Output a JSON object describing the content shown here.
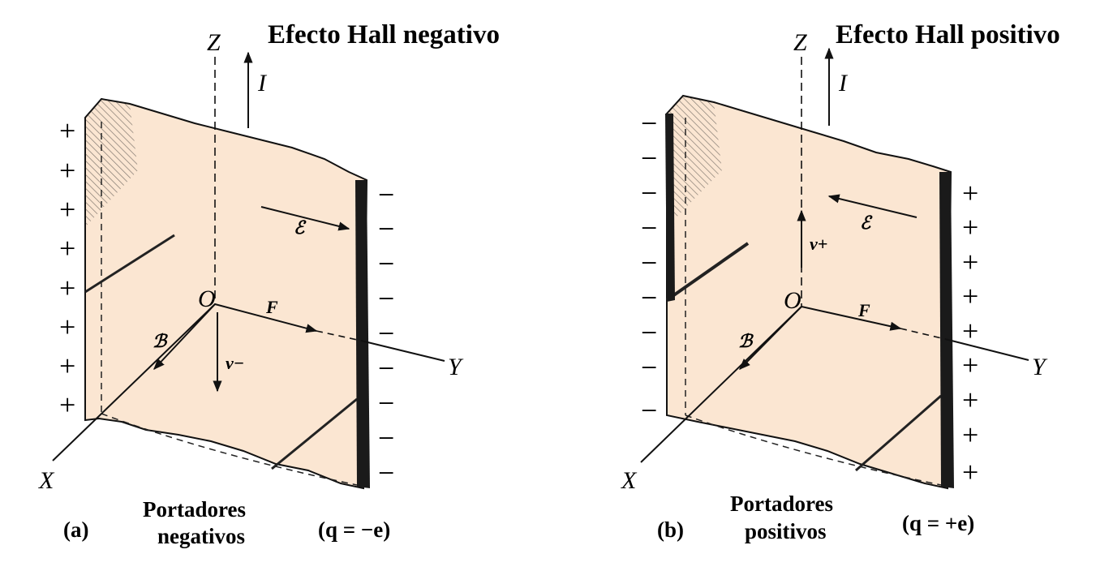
{
  "panel_a": {
    "title": "Efecto Hall negativo",
    "z": "Z",
    "x": "X",
    "y": "Y",
    "o": "O",
    "i": "I",
    "f": "F",
    "b": "ℬ",
    "e": "ℰ",
    "v": "v−",
    "label": "(a)",
    "carriers_line1": "Portadores",
    "carriers_line2": "negativos",
    "charge": "(q = −e)",
    "left_sign": "+",
    "right_sign": "−"
  },
  "panel_b": {
    "title": "Efecto Hall positivo",
    "z": "Z",
    "x": "X",
    "y": "Y",
    "o": "O",
    "i": "I",
    "f": "F",
    "b": "ℬ",
    "e": "ℰ",
    "v": "v+",
    "label": "(b)",
    "carriers_line1": "Portadores",
    "carriers_line2": "positivos",
    "charge": "(q = +e)",
    "left_sign": "−",
    "right_sign": "+"
  },
  "colors": {
    "slab": "#fbe6d2",
    "ink": "#111111"
  }
}
